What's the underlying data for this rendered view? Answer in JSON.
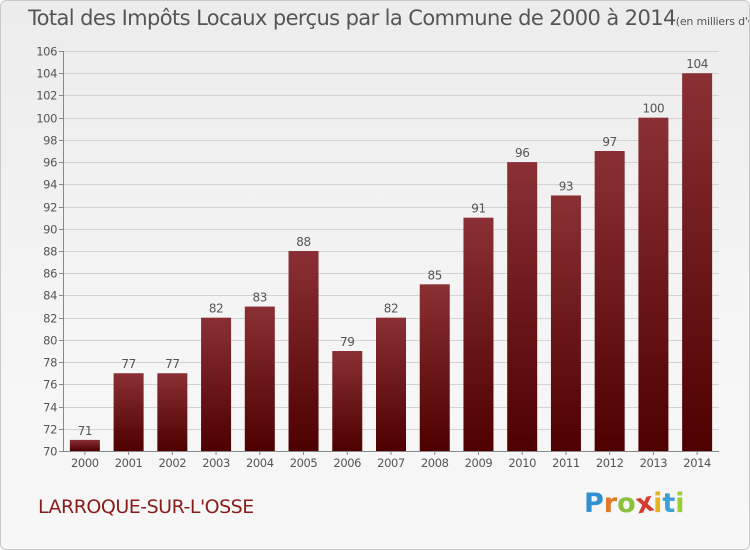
{
  "title": "Total des Impôts Locaux perçus par la Commune de 2000 à 2014",
  "unit": "(en milliers d'€)",
  "commune": "LARROQUE-SUR-L'OSSE",
  "logo": {
    "letters": [
      "P",
      "r",
      "o",
      "x",
      "i",
      "t",
      "i"
    ],
    "colors": [
      "#2f8fcf",
      "#e0782a",
      "#8cbf3a",
      "#d63b2f",
      "#e7b322",
      "#3fa0d8",
      "#9acd32"
    ]
  },
  "colors": {
    "bar_top": "#8a3034",
    "bar_bottom": "#4e0000",
    "grid": "#d2d2d2",
    "axis": "#555555"
  },
  "chart_data": {
    "type": "bar",
    "title": "Total des Impôts Locaux perçus par la Commune de 2000 à 2014",
    "xlabel": "",
    "ylabel": "",
    "categories": [
      "2000",
      "2001",
      "2002",
      "2003",
      "2004",
      "2005",
      "2006",
      "2007",
      "2008",
      "2009",
      "2010",
      "2011",
      "2012",
      "2013",
      "2014"
    ],
    "values": [
      71,
      77,
      77,
      82,
      83,
      88,
      79,
      82,
      85,
      91,
      96,
      93,
      97,
      100,
      104
    ],
    "ylim": [
      70,
      106
    ],
    "yticks": [
      70,
      72,
      74,
      76,
      78,
      80,
      82,
      84,
      86,
      88,
      90,
      92,
      94,
      96,
      98,
      100,
      102,
      104,
      106
    ],
    "grid": true
  }
}
